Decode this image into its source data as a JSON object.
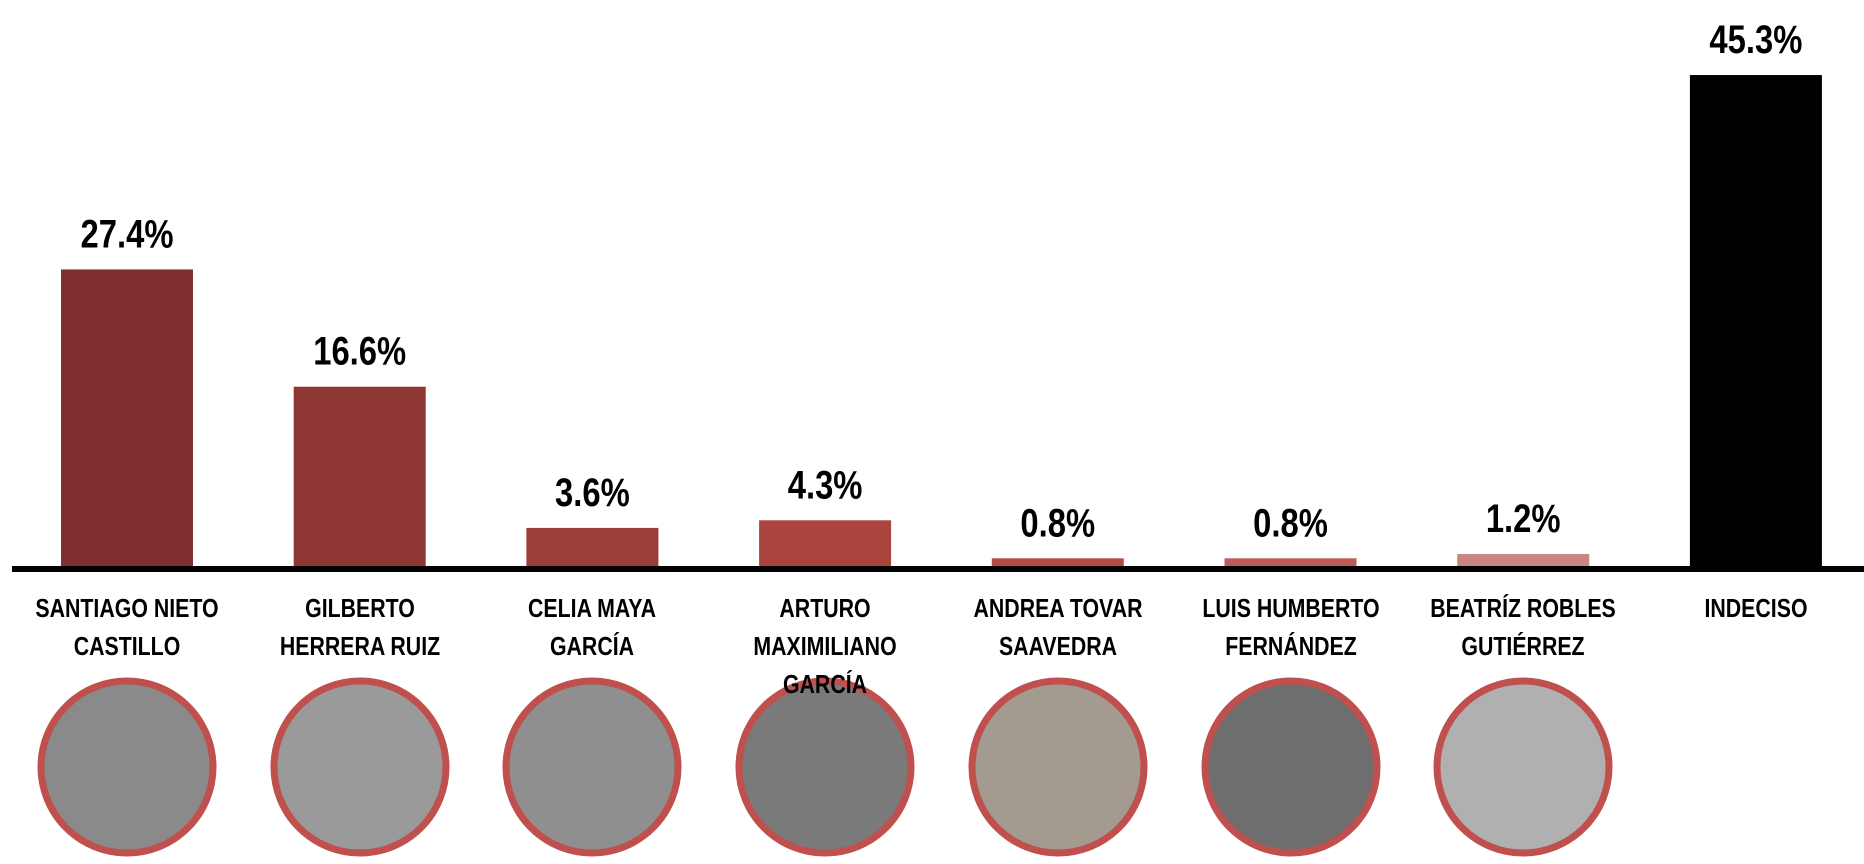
{
  "chart_data": {
    "type": "bar",
    "categories": [
      "SANTIAGO NIETO CASTILLO",
      "GILBERTO HERRERA RUIZ",
      "CELIA MAYA GARCÍA",
      "ARTURO MAXIMILIANO GARCÍA",
      "ANDREA TOVAR SAAVEDRA",
      "LUIS HUMBERTO FERNÁNDEZ",
      "BEATRÍZ ROBLES GUTIÉRREZ",
      "INDECISO"
    ],
    "values": [
      27.4,
      16.6,
      3.6,
      4.3,
      0.8,
      0.8,
      1.2,
      45.3
    ],
    "value_labels": [
      "27.4%",
      "16.6%",
      "3.6%",
      "4.3%",
      "0.8%",
      "0.8%",
      "1.2%",
      "45.3%"
    ],
    "colors": [
      "#7f2f30",
      "#8e3735",
      "#9b3d3a",
      "#a9443f",
      "#b24a46",
      "#bd5c58",
      "#c98683",
      "#000000"
    ],
    "ylim": [
      0,
      50
    ]
  }
}
